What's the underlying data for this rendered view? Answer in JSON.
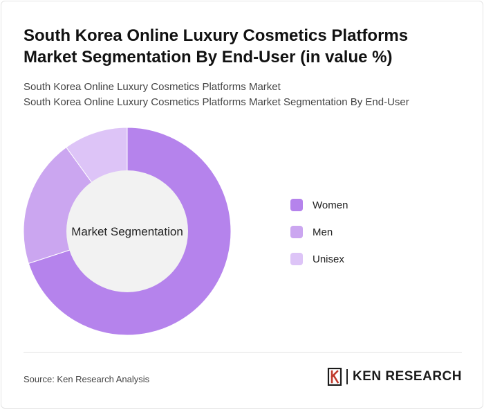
{
  "header": {
    "title": "South Korea Online Luxury Cosmetics Platforms Market Segmentation By End-User (in value %)",
    "subtitle_line1": "South Korea Online Luxury Cosmetics Platforms Market",
    "subtitle_line2": "South Korea Online Luxury Cosmetics Platforms Market Segmentation By End-User"
  },
  "chart_data": {
    "type": "pie",
    "variant": "donut",
    "center_label": "Market Segmentation",
    "categories": [
      "Women",
      "Men",
      "Unisex"
    ],
    "values": [
      70,
      20,
      10
    ],
    "colors": [
      "#b583ec",
      "#cba6f0",
      "#ddc4f7"
    ],
    "center_fill": "#f2f2f2",
    "legend_position": "right"
  },
  "footer": {
    "source": "Source: Ken Research Analysis",
    "logo_text": "KEN RESEARCH",
    "logo_icon": "ken-research-logo-icon"
  }
}
